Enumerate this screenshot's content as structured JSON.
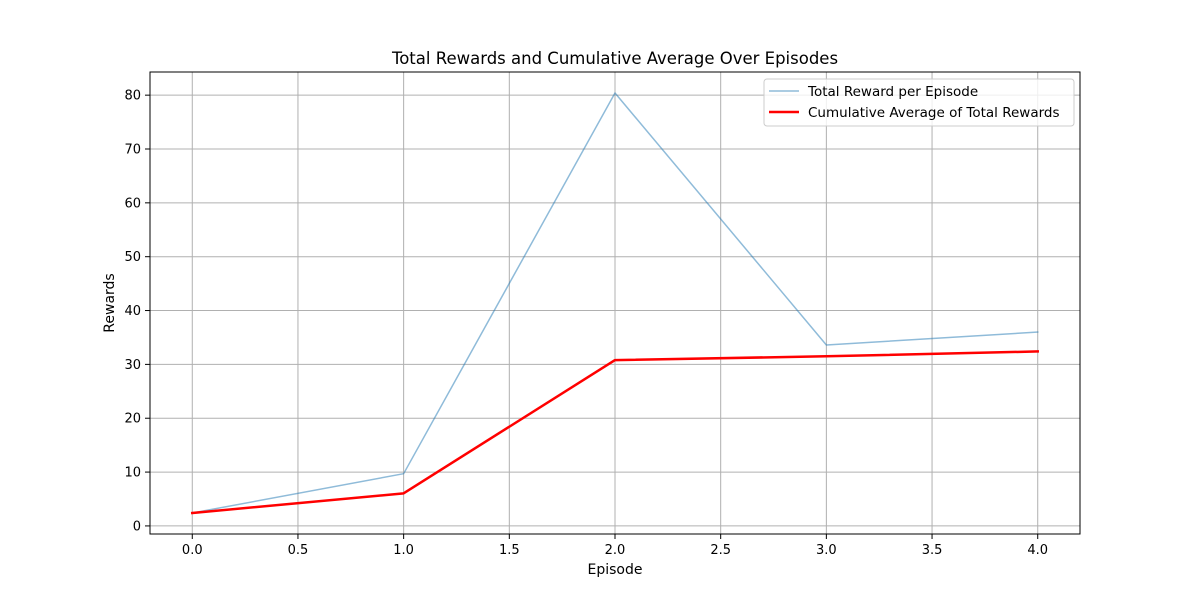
{
  "chart_data": {
    "type": "line",
    "title": "Total Rewards and Cumulative Average Over Episodes",
    "xlabel": "Episode",
    "ylabel": "Rewards",
    "xlim": [
      -0.2,
      4.2
    ],
    "ylim": [
      -1.5,
      84.3
    ],
    "xticks": [
      0.0,
      0.5,
      1.0,
      1.5,
      2.0,
      2.5,
      3.0,
      3.5,
      4.0
    ],
    "xtick_labels": [
      "0.0",
      "0.5",
      "1.0",
      "1.5",
      "2.0",
      "2.5",
      "3.0",
      "3.5",
      "4.0"
    ],
    "yticks": [
      0,
      10,
      20,
      30,
      40,
      50,
      60,
      70,
      80
    ],
    "ytick_labels": [
      "0",
      "10",
      "20",
      "30",
      "40",
      "50",
      "60",
      "70",
      "80"
    ],
    "grid": true,
    "legend_position": "top-right",
    "x": [
      0,
      1,
      2,
      3,
      4
    ],
    "series": [
      {
        "name": "Total Reward per Episode",
        "values": [
          2.4,
          9.7,
          80.4,
          33.6,
          36.0
        ],
        "color": "#1f77b4",
        "opacity": 0.5,
        "width": 1.5
      },
      {
        "name": "Cumulative Average of Total Rewards",
        "values": [
          2.4,
          6.05,
          30.8,
          31.5,
          32.4
        ],
        "color": "#ff0000",
        "opacity": 1,
        "width": 2.5
      }
    ]
  }
}
